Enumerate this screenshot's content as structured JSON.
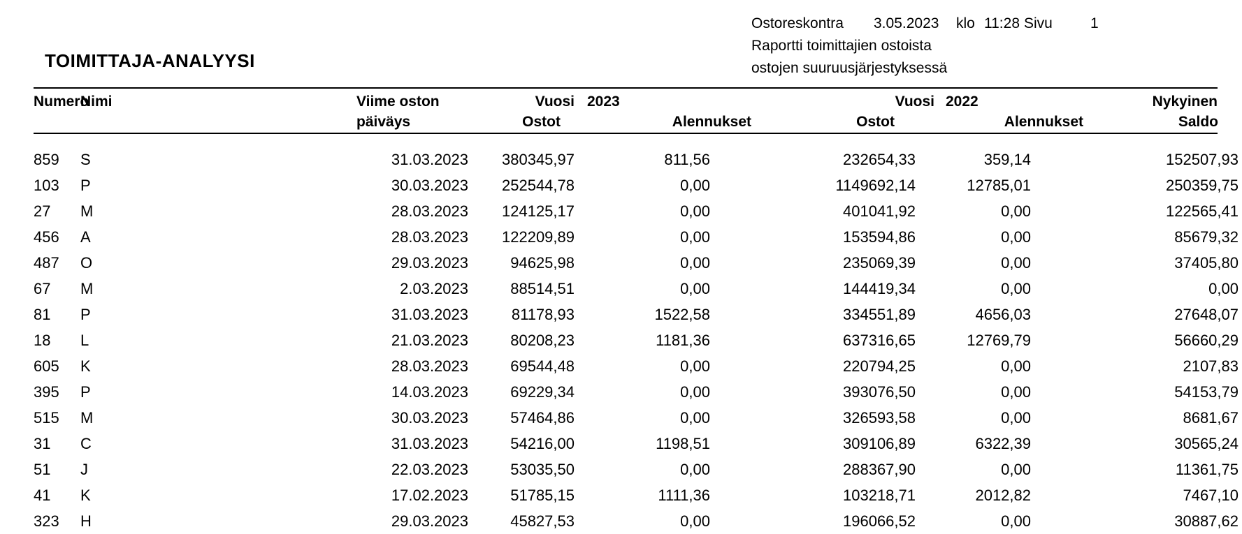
{
  "report_header": {
    "app_name": "Ostoreskontra",
    "date": "3.05.2023",
    "klo_label": "klo",
    "time": "11:28",
    "page_label": "Sivu",
    "page_number": "1",
    "subtitle_line1": "Raportti toimittajien ostoista",
    "subtitle_line2": "ostojen suuruusjärjestyksessä"
  },
  "title": "TOIMITTAJA-ANALYYSI",
  "table": {
    "headers": {
      "numero": "Numero",
      "nimi": "Nimi",
      "viime_oston": "Viime oston",
      "paivays": "päiväys",
      "vuosi_label": "Vuosi",
      "year_2023": "2023",
      "year_2022": "2022",
      "ostot": "Ostot",
      "alennukset": "Alennukset",
      "nykyinen": "Nykyinen",
      "saldo": "Saldo"
    },
    "rows": [
      {
        "numero": "859",
        "nimi": "S",
        "paivays": "31.03.2023",
        "ostot_2023": "380345,97",
        "alennukset_2023": "811,56",
        "ostot_2022": "232654,33",
        "alennukset_2022": "359,14",
        "saldo": "152507,93"
      },
      {
        "numero": "103",
        "nimi": "P",
        "paivays": "30.03.2023",
        "ostot_2023": "252544,78",
        "alennukset_2023": "0,00",
        "ostot_2022": "1149692,14",
        "alennukset_2022": "12785,01",
        "saldo": "250359,75"
      },
      {
        "numero": "27",
        "nimi": "M",
        "paivays": "28.03.2023",
        "ostot_2023": "124125,17",
        "alennukset_2023": "0,00",
        "ostot_2022": "401041,92",
        "alennukset_2022": "0,00",
        "saldo": "122565,41"
      },
      {
        "numero": "456",
        "nimi": "A",
        "paivays": "28.03.2023",
        "ostot_2023": "122209,89",
        "alennukset_2023": "0,00",
        "ostot_2022": "153594,86",
        "alennukset_2022": "0,00",
        "saldo": "85679,32"
      },
      {
        "numero": "487",
        "nimi": "O",
        "paivays": "29.03.2023",
        "ostot_2023": "94625,98",
        "alennukset_2023": "0,00",
        "ostot_2022": "235069,39",
        "alennukset_2022": "0,00",
        "saldo": "37405,80"
      },
      {
        "numero": "67",
        "nimi": "M",
        "paivays": "2.03.2023",
        "ostot_2023": "88514,51",
        "alennukset_2023": "0,00",
        "ostot_2022": "144419,34",
        "alennukset_2022": "0,00",
        "saldo": "0,00"
      },
      {
        "numero": "81",
        "nimi": "P",
        "paivays": "31.03.2023",
        "ostot_2023": "81178,93",
        "alennukset_2023": "1522,58",
        "ostot_2022": "334551,89",
        "alennukset_2022": "4656,03",
        "saldo": "27648,07"
      },
      {
        "numero": "18",
        "nimi": "L",
        "paivays": "21.03.2023",
        "ostot_2023": "80208,23",
        "alennukset_2023": "1181,36",
        "ostot_2022": "637316,65",
        "alennukset_2022": "12769,79",
        "saldo": "56660,29"
      },
      {
        "numero": "605",
        "nimi": "K",
        "paivays": "28.03.2023",
        "ostot_2023": "69544,48",
        "alennukset_2023": "0,00",
        "ostot_2022": "220794,25",
        "alennukset_2022": "0,00",
        "saldo": "2107,83"
      },
      {
        "numero": "395",
        "nimi": "P",
        "paivays": "14.03.2023",
        "ostot_2023": "69229,34",
        "alennukset_2023": "0,00",
        "ostot_2022": "393076,50",
        "alennukset_2022": "0,00",
        "saldo": "54153,79"
      },
      {
        "numero": "515",
        "nimi": "M",
        "paivays": "30.03.2023",
        "ostot_2023": "57464,86",
        "alennukset_2023": "0,00",
        "ostot_2022": "326593,58",
        "alennukset_2022": "0,00",
        "saldo": "8681,67"
      },
      {
        "numero": "31",
        "nimi": "C",
        "paivays": "31.03.2023",
        "ostot_2023": "54216,00",
        "alennukset_2023": "1198,51",
        "ostot_2022": "309106,89",
        "alennukset_2022": "6322,39",
        "saldo": "30565,24"
      },
      {
        "numero": "51",
        "nimi": "J",
        "paivays": "22.03.2023",
        "ostot_2023": "53035,50",
        "alennukset_2023": "0,00",
        "ostot_2022": "288367,90",
        "alennukset_2022": "0,00",
        "saldo": "11361,75"
      },
      {
        "numero": "41",
        "nimi": "K",
        "paivays": "17.02.2023",
        "ostot_2023": "51785,15",
        "alennukset_2023": "1111,36",
        "ostot_2022": "103218,71",
        "alennukset_2022": "2012,82",
        "saldo": "7467,10"
      },
      {
        "numero": "323",
        "nimi": "H",
        "paivays": "29.03.2023",
        "ostot_2023": "45827,53",
        "alennukset_2023": "0,00",
        "ostot_2022": "196066,52",
        "alennukset_2022": "0,00",
        "saldo": "30887,62"
      }
    ]
  }
}
